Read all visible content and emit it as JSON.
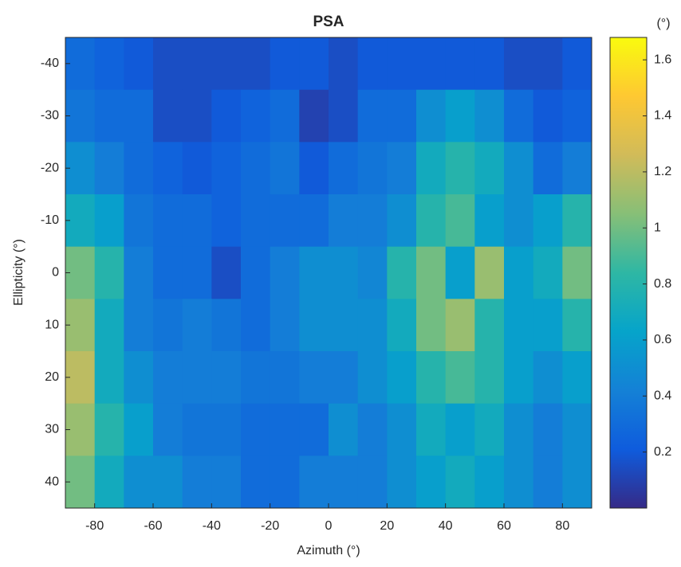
{
  "chart_data": {
    "type": "heatmap",
    "title": "PSA",
    "x_label": "Azimuth (°)",
    "y_label": "Ellipticity (°)",
    "colorbar_label": "(°)",
    "x": [
      -85,
      -75,
      -65,
      -55,
      -45,
      -35,
      -25,
      -15,
      -5,
      5,
      15,
      25,
      35,
      45,
      55,
      65,
      75,
      85
    ],
    "y": [
      -40,
      -30,
      -20,
      -10,
      0,
      10,
      20,
      30,
      40
    ],
    "z": [
      [
        0.3,
        0.25,
        0.2,
        0.15,
        0.15,
        0.15,
        0.15,
        0.2,
        0.2,
        0.15,
        0.2,
        0.2,
        0.2,
        0.2,
        0.2,
        0.15,
        0.15,
        0.2
      ],
      [
        0.35,
        0.3,
        0.3,
        0.15,
        0.15,
        0.2,
        0.25,
        0.3,
        0.1,
        0.15,
        0.3,
        0.3,
        0.5,
        0.6,
        0.5,
        0.3,
        0.2,
        0.25
      ],
      [
        0.5,
        0.4,
        0.3,
        0.25,
        0.2,
        0.25,
        0.3,
        0.35,
        0.2,
        0.3,
        0.35,
        0.4,
        0.7,
        0.8,
        0.7,
        0.5,
        0.3,
        0.4
      ],
      [
        0.7,
        0.6,
        0.35,
        0.3,
        0.3,
        0.25,
        0.3,
        0.3,
        0.3,
        0.4,
        0.4,
        0.5,
        0.8,
        0.9,
        0.6,
        0.5,
        0.6,
        0.8
      ],
      [
        1.0,
        0.8,
        0.4,
        0.3,
        0.3,
        0.15,
        0.3,
        0.4,
        0.5,
        0.5,
        0.45,
        0.8,
        1.0,
        0.6,
        1.1,
        0.6,
        0.7,
        1.0
      ],
      [
        1.1,
        0.7,
        0.4,
        0.35,
        0.4,
        0.35,
        0.3,
        0.4,
        0.5,
        0.5,
        0.5,
        0.7,
        1.0,
        1.1,
        0.8,
        0.6,
        0.6,
        0.8
      ],
      [
        1.2,
        0.7,
        0.5,
        0.4,
        0.4,
        0.4,
        0.35,
        0.35,
        0.4,
        0.4,
        0.5,
        0.6,
        0.8,
        0.9,
        0.8,
        0.6,
        0.5,
        0.6
      ],
      [
        1.1,
        0.8,
        0.6,
        0.4,
        0.35,
        0.35,
        0.3,
        0.3,
        0.3,
        0.5,
        0.4,
        0.5,
        0.7,
        0.6,
        0.7,
        0.5,
        0.4,
        0.5
      ],
      [
        1.0,
        0.7,
        0.5,
        0.5,
        0.4,
        0.4,
        0.3,
        0.3,
        0.4,
        0.4,
        0.4,
        0.5,
        0.6,
        0.7,
        0.6,
        0.5,
        0.4,
        0.5
      ]
    ],
    "xlim": [
      -90,
      90
    ],
    "xticks": [
      -80,
      -60,
      -40,
      -20,
      0,
      20,
      40,
      60,
      80
    ],
    "ylim": [
      -45,
      45
    ],
    "yticks": [
      -40,
      -30,
      -20,
      -10,
      0,
      10,
      20,
      30,
      40
    ],
    "y_reversed": true,
    "clim": [
      0,
      1.68
    ],
    "cticks": [
      0.2,
      0.4,
      0.6,
      0.8,
      1,
      1.2,
      1.4,
      1.6
    ],
    "colormap": [
      "#352a87",
      "#0f5cdd",
      "#1481d6",
      "#06a4ca",
      "#2eb7a4",
      "#87bf77",
      "#d1bb59",
      "#fec832",
      "#f9fb0e"
    ]
  }
}
